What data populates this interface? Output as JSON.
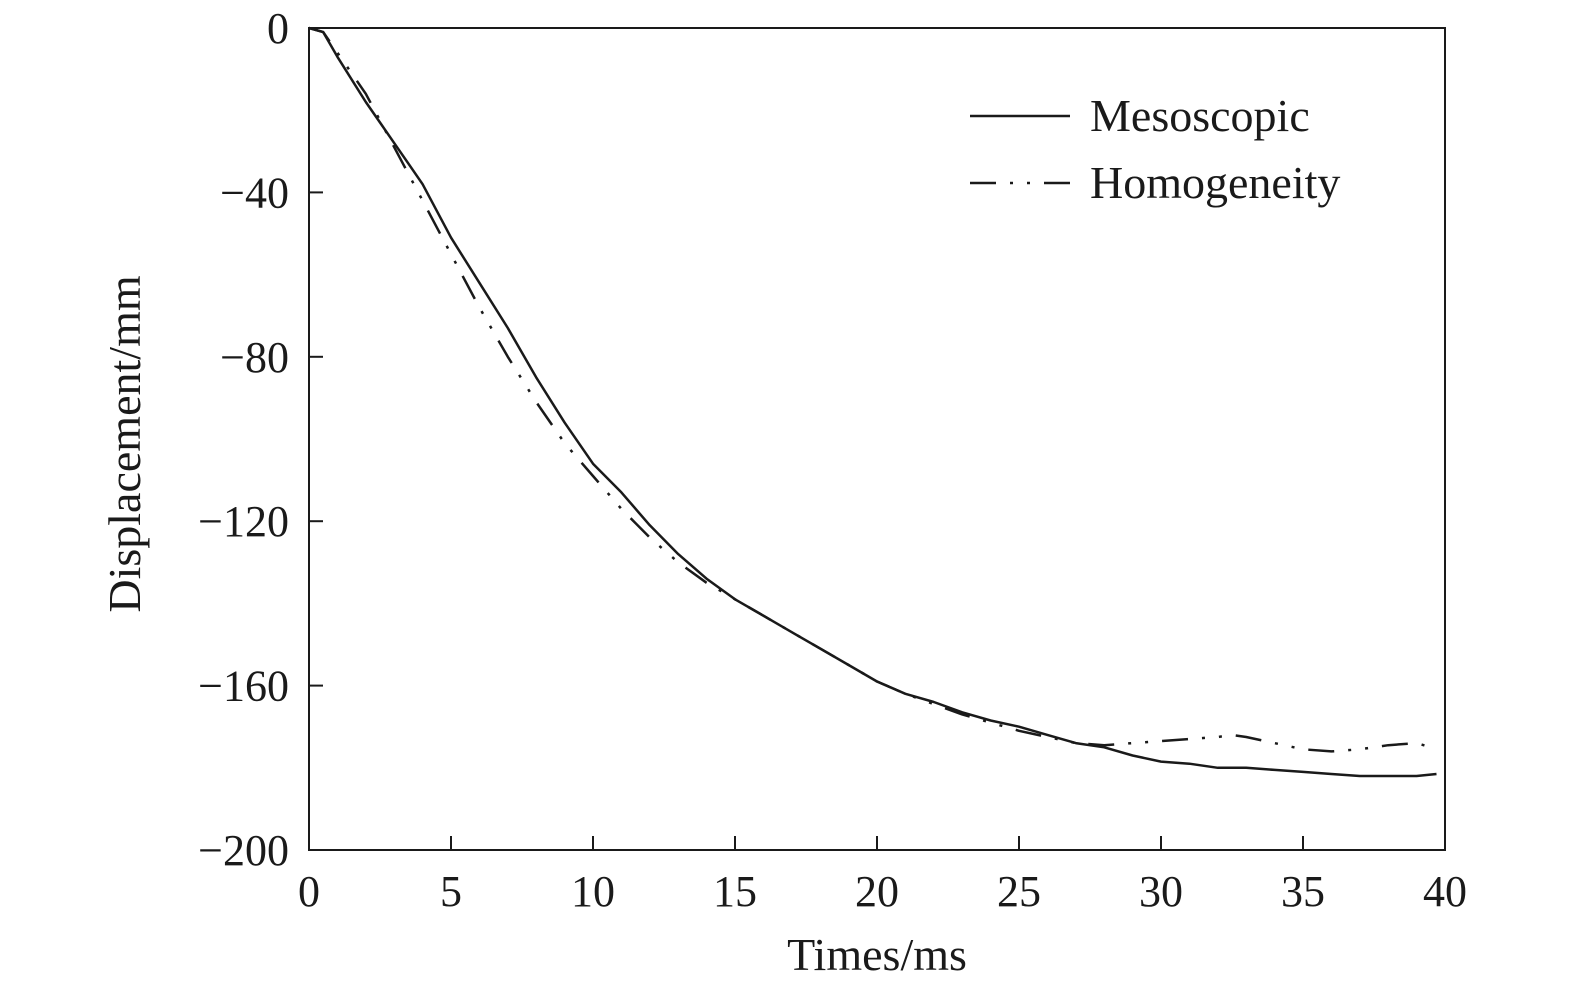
{
  "chart_data": {
    "type": "line",
    "title": "",
    "xlabel": "Times/ms",
    "ylabel": "Displacement/mm",
    "xlim": [
      0,
      40
    ],
    "ylim": [
      -200,
      0
    ],
    "xticks": [
      0,
      5,
      10,
      15,
      20,
      25,
      30,
      35,
      40
    ],
    "yticks": [
      0,
      -40,
      -80,
      -120,
      -160,
      -200
    ],
    "xtick_labels": [
      "0",
      "5",
      "10",
      "15",
      "20",
      "25",
      "30",
      "35",
      "40"
    ],
    "ytick_labels": [
      "0",
      "−40",
      "−80",
      "−120",
      "−160",
      "−200"
    ],
    "grid": false,
    "legend_position": "top-right",
    "series": [
      {
        "name": "Mesoscopic",
        "line_style": "solid",
        "color": "#1a1a1a",
        "x": [
          0,
          0.5,
          1,
          2,
          2.5,
          3,
          3.5,
          4,
          5,
          6,
          7,
          8,
          9,
          10,
          11,
          12,
          13,
          14,
          15,
          16,
          17,
          18,
          19,
          20,
          21,
          22,
          23,
          24,
          25,
          26,
          27,
          28,
          29,
          30,
          31,
          32,
          33,
          34,
          35,
          36,
          37,
          38,
          39,
          39.7
        ],
        "y": [
          0,
          -1,
          -7,
          -18,
          -23,
          -28,
          -33,
          -38,
          -51,
          -62,
          -73,
          -85,
          -96,
          -106,
          -113,
          -121,
          -128,
          -134,
          -139,
          -143,
          -147,
          -151,
          -155,
          -159,
          -162,
          -164,
          -166.5,
          -168.5,
          -170,
          -172,
          -174,
          -175,
          -177,
          -178.5,
          -179,
          -180,
          -180,
          -180.5,
          -181,
          -181.5,
          -182,
          -182,
          -182,
          -181.5
        ]
      },
      {
        "name": "Homogeneity",
        "line_style": "dash-dot-dot",
        "color": "#1a1a1a",
        "x": [
          0,
          0.5,
          1,
          2,
          3,
          4,
          5,
          6,
          7,
          8,
          9,
          10,
          11,
          12,
          13,
          14,
          15,
          16,
          17,
          18,
          19,
          20,
          21,
          22,
          23,
          24,
          25,
          26,
          27,
          28,
          29,
          30,
          31,
          32,
          32.5,
          33,
          34,
          35,
          36,
          37,
          38,
          39,
          39.5
        ],
        "y": [
          0,
          -1,
          -6,
          -16,
          -29,
          -42,
          -55,
          -68,
          -80,
          -91,
          -101,
          -109,
          -117,
          -124,
          -130,
          -135,
          -139,
          -143,
          -147,
          -151,
          -155,
          -159,
          -162,
          -164.5,
          -167,
          -169,
          -171,
          -172.5,
          -174,
          -174.5,
          -174,
          -173.5,
          -173,
          -172.5,
          -172,
          -172.5,
          -174,
          -175.5,
          -176,
          -175.5,
          -174.5,
          -174,
          -175
        ]
      }
    ]
  }
}
